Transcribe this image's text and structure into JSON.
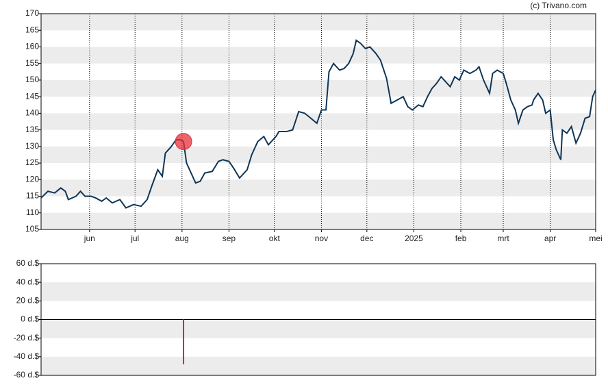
{
  "chart_data": [
    {
      "type": "line",
      "source": "(c) Trivano.com",
      "x": [
        0,
        4.5,
        9,
        13,
        16,
        18,
        23,
        26,
        29,
        33,
        36,
        40,
        43,
        47,
        52,
        56,
        61,
        66,
        70,
        73,
        77,
        80,
        82,
        86,
        89,
        92,
        94,
        96,
        99,
        102,
        105,
        108,
        113,
        117,
        120,
        124,
        127,
        131,
        136,
        139,
        143,
        147,
        150,
        155,
        157,
        162,
        166,
        170,
        174,
        178,
        182,
        185,
        188,
        190,
        193,
        197,
        200,
        203,
        206,
        208,
        211,
        214,
        217,
        221,
        224,
        228,
        231,
        235,
        239,
        242,
        245,
        249,
        252,
        255,
        258,
        261,
        264,
        268,
        270,
        273,
        276,
        279,
        283,
        287,
        289,
        292,
        296,
        298,
        301,
        305,
        307,
        310,
        313,
        315,
        318,
        321,
        324,
        325,
        328,
        331,
        333,
        336,
        338,
        340,
        343,
        344,
        347,
        350,
        353,
        356,
        359,
        362,
        364,
        366
      ],
      "series": [
        {
          "color": "#0e3557",
          "values": [
            114.5,
            116.5,
            116,
            117.5,
            116.5,
            114,
            115,
            116.5,
            115,
            115,
            114.5,
            113.5,
            114.5,
            113,
            114,
            111.5,
            112.5,
            112,
            114,
            118,
            123,
            121,
            128,
            130,
            132,
            132,
            131.5,
            125,
            122,
            119,
            119.5,
            122,
            122.5,
            125.5,
            126,
            125.5,
            123.5,
            120.5,
            123,
            127.5,
            131.5,
            133,
            130.5,
            133,
            134.5,
            134.5,
            135,
            140.5,
            140,
            138.5,
            137,
            141,
            141,
            152.5,
            155,
            153,
            153.5,
            155,
            158,
            162,
            161,
            159.5,
            160,
            158,
            156,
            150.5,
            143,
            144,
            145,
            142,
            141,
            142.5,
            142,
            145,
            147.5,
            149,
            151,
            149,
            148,
            151,
            150,
            153,
            152,
            153,
            154,
            150,
            146,
            152,
            153,
            152,
            149,
            144,
            141,
            137,
            141,
            142,
            142.5,
            144,
            146,
            144,
            140,
            141,
            132,
            129,
            126,
            135,
            134,
            136,
            131,
            134,
            138.5,
            139,
            145,
            147
          ]
        }
      ],
      "marker": {
        "x": 94,
        "y": 131.5,
        "color": "#e8303a"
      },
      "xlim": [
        0,
        366
      ],
      "xticks": [
        {
          "value": 32,
          "label": "jun"
        },
        {
          "value": 62,
          "label": "jul"
        },
        {
          "value": 93,
          "label": "aug"
        },
        {
          "value": 124,
          "label": "sep"
        },
        {
          "value": 154,
          "label": "okt"
        },
        {
          "value": 185,
          "label": "nov"
        },
        {
          "value": 215,
          "label": "dec"
        },
        {
          "value": 246,
          "label": "2025"
        },
        {
          "value": 277,
          "label": "feb"
        },
        {
          "value": 305,
          "label": "mrt"
        },
        {
          "value": 336,
          "label": "apr"
        },
        {
          "value": 366,
          "label": "mei"
        }
      ],
      "ylim": [
        105,
        170
      ],
      "yticks": [
        105,
        110,
        115,
        120,
        125,
        130,
        135,
        140,
        145,
        150,
        155,
        160,
        165,
        170
      ],
      "grid": true
    },
    {
      "type": "bar",
      "x": [
        94
      ],
      "values": [
        -48
      ],
      "color": "#e0202b",
      "xlim": [
        0,
        366
      ],
      "ylim": [
        -60,
        60
      ],
      "yticks": [
        {
          "value": -60,
          "label": "-60 d.$"
        },
        {
          "value": -40,
          "label": "-40 d.$"
        },
        {
          "value": -20,
          "label": "-20 d.$"
        },
        {
          "value": 0,
          "label": "0 d.$"
        },
        {
          "value": 20,
          "label": "20 d.$"
        },
        {
          "value": 40,
          "label": "40 d.$"
        },
        {
          "value": 60,
          "label": "60 d.$"
        }
      ]
    }
  ]
}
